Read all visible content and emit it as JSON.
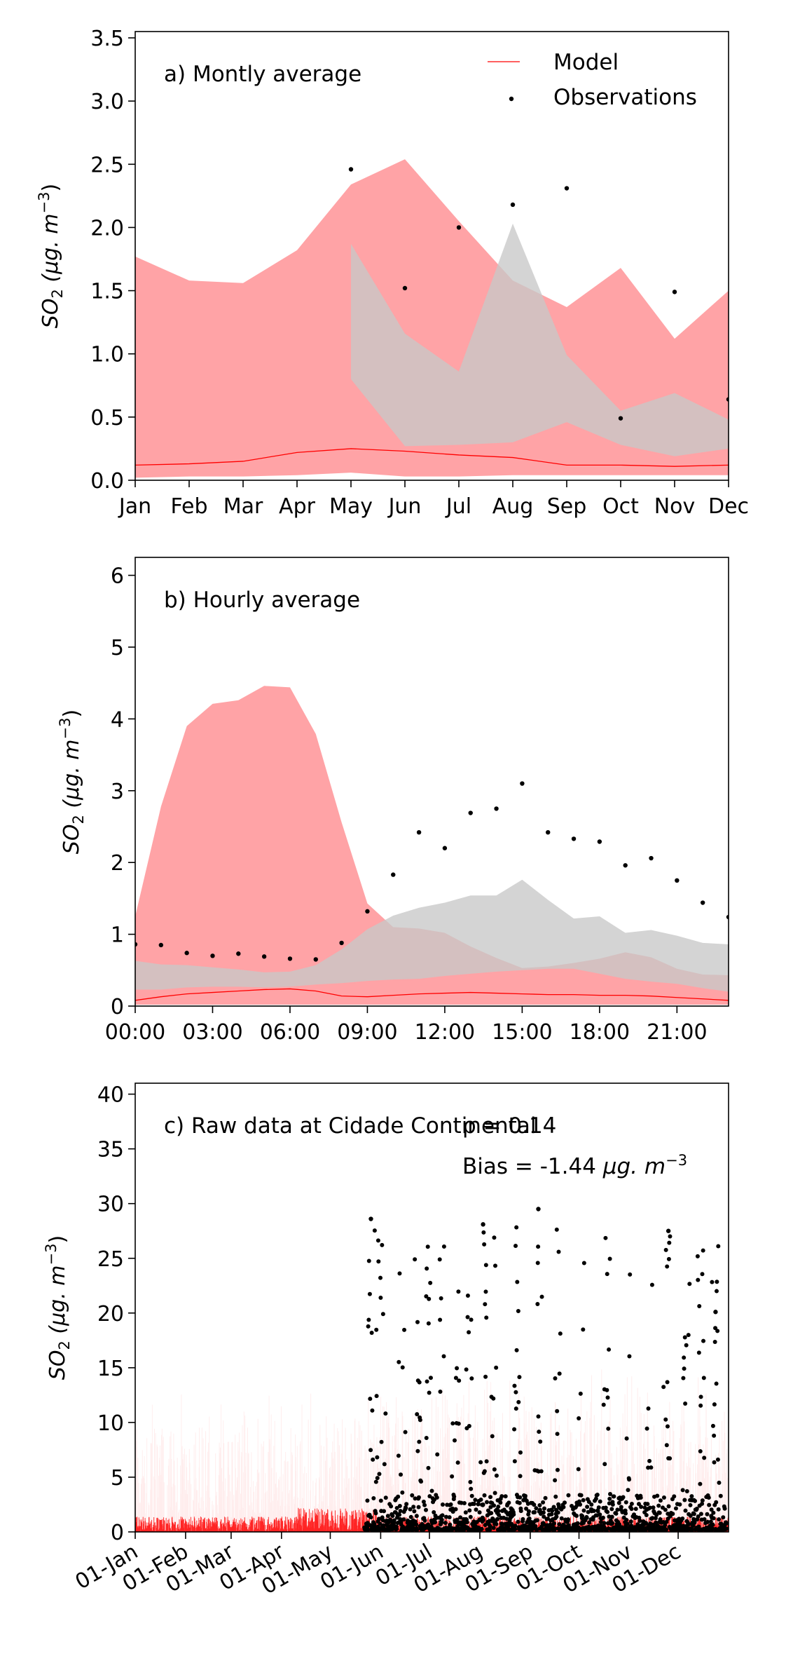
{
  "colors": {
    "model": "#ff0000",
    "model_band": "#ffa3a6",
    "obs_band": "#c8c8c8",
    "obs_point": "#000000",
    "axis": "#000000"
  },
  "legend": {
    "model_label": "Model",
    "obs_label": "Observations"
  },
  "chart_data": [
    {
      "type": "line",
      "title": "a) Montly average",
      "xlabel": "",
      "ylabel": "SO",
      "ylabel_sub": "2",
      "ylabel_unit": "(μg. m",
      "ylabel_exp": "−3",
      "ylim": [
        0,
        3.55
      ],
      "yticks": [
        0.0,
        0.5,
        1.0,
        1.5,
        2.0,
        2.5,
        3.0,
        3.5
      ],
      "ytick_labels": [
        "0.0",
        "0.5",
        "1.0",
        "1.5",
        "2.0",
        "2.5",
        "3.0",
        "3.5"
      ],
      "x": [
        1,
        2,
        3,
        4,
        5,
        6,
        7,
        8,
        9,
        10,
        11,
        12
      ],
      "xlim": [
        1,
        12
      ],
      "xtick_labels": [
        "Jan",
        "Feb",
        "Mar",
        "Apr",
        "May",
        "Jun",
        "Jul",
        "Aug",
        "Sep",
        "Oct",
        "Nov",
        "Dec"
      ],
      "legend_position": "top-right",
      "series": [
        {
          "name": "Model",
          "kind": "line",
          "values": [
            0.12,
            0.13,
            0.15,
            0.22,
            0.25,
            0.23,
            0.2,
            0.18,
            0.12,
            0.12,
            0.11,
            0.12
          ]
        },
        {
          "kind": "band",
          "color_key": "model_band",
          "x": [
            1,
            2,
            3,
            4,
            5,
            6,
            7,
            8,
            9,
            10,
            11,
            12
          ],
          "lower": [
            0.02,
            0.03,
            0.03,
            0.04,
            0.06,
            0.03,
            0.03,
            0.04,
            0.04,
            0.04,
            0.04,
            0.04
          ],
          "upper": [
            1.77,
            1.58,
            1.56,
            1.82,
            2.34,
            2.54,
            2.05,
            1.58,
            1.37,
            1.68,
            1.12,
            1.5
          ]
        },
        {
          "kind": "band",
          "color_key": "obs_band",
          "x": [
            5,
            6,
            7,
            8,
            9,
            10,
            11,
            12
          ],
          "lower": [
            0.8,
            0.27,
            0.28,
            0.3,
            0.46,
            0.28,
            0.19,
            0.25
          ],
          "upper": [
            1.87,
            1.16,
            0.86,
            2.03,
            0.99,
            0.55,
            0.69,
            0.48
          ]
        },
        {
          "name": "Observations",
          "kind": "points",
          "x": [
            5,
            6,
            7,
            8,
            9,
            10,
            11,
            12
          ],
          "values": [
            2.46,
            1.52,
            2.0,
            2.18,
            2.31,
            0.49,
            1.49,
            0.64
          ]
        }
      ]
    },
    {
      "type": "line",
      "title": "b) Hourly average",
      "xlabel": "",
      "ylabel": "SO",
      "ylabel_sub": "2",
      "ylabel_unit": "(μg. m",
      "ylabel_exp": "−3",
      "ylim": [
        0,
        6.25
      ],
      "yticks": [
        0,
        1,
        2,
        3,
        4,
        5,
        6
      ],
      "ytick_labels": [
        "0",
        "1",
        "2",
        "3",
        "4",
        "5",
        "6"
      ],
      "xlim": [
        0,
        23
      ],
      "xticks": [
        0,
        3,
        6,
        9,
        12,
        15,
        18,
        21
      ],
      "xtick_labels": [
        "00:00",
        "03:00",
        "06:00",
        "09:00",
        "12:00",
        "15:00",
        "18:00",
        "21:00"
      ],
      "x": [
        0,
        1,
        2,
        3,
        4,
        5,
        6,
        7,
        8,
        9,
        10,
        11,
        12,
        13,
        14,
        15,
        16,
        17,
        18,
        19,
        20,
        21,
        22,
        23
      ],
      "series": [
        {
          "name": "Model",
          "kind": "line",
          "values": [
            0.08,
            0.13,
            0.17,
            0.19,
            0.21,
            0.23,
            0.24,
            0.21,
            0.14,
            0.13,
            0.15,
            0.17,
            0.18,
            0.19,
            0.18,
            0.17,
            0.16,
            0.16,
            0.15,
            0.15,
            0.14,
            0.12,
            0.1,
            0.08
          ]
        },
        {
          "kind": "band",
          "color_key": "model_band",
          "lower": [
            0.02,
            0.02,
            0.02,
            0.02,
            0.02,
            0.02,
            0.02,
            0.02,
            0.02,
            0.02,
            0.02,
            0.02,
            0.02,
            0.02,
            0.02,
            0.02,
            0.02,
            0.02,
            0.02,
            0.02,
            0.02,
            0.02,
            0.02,
            0.02
          ],
          "upper": [
            1.25,
            2.78,
            3.9,
            4.21,
            4.26,
            4.46,
            4.44,
            3.79,
            2.56,
            1.43,
            1.1,
            1.08,
            1.02,
            0.83,
            0.67,
            0.53,
            0.55,
            0.6,
            0.66,
            0.75,
            0.68,
            0.52,
            0.44,
            0.43
          ]
        },
        {
          "kind": "band",
          "color_key": "obs_band",
          "lower": [
            0.23,
            0.23,
            0.26,
            0.27,
            0.27,
            0.26,
            0.27,
            0.3,
            0.32,
            0.35,
            0.37,
            0.38,
            0.42,
            0.45,
            0.48,
            0.5,
            0.52,
            0.52,
            0.45,
            0.38,
            0.34,
            0.31,
            0.25,
            0.2
          ],
          "upper": [
            0.63,
            0.58,
            0.57,
            0.54,
            0.51,
            0.47,
            0.48,
            0.57,
            0.79,
            1.07,
            1.26,
            1.37,
            1.44,
            1.54,
            1.54,
            1.76,
            1.48,
            1.22,
            1.25,
            1.02,
            1.06,
            0.98,
            0.88,
            0.86
          ]
        },
        {
          "name": "Observations",
          "kind": "points",
          "values": [
            0.86,
            0.85,
            0.74,
            0.7,
            0.73,
            0.69,
            0.66,
            0.65,
            0.88,
            1.32,
            1.83,
            2.42,
            2.2,
            2.69,
            2.75,
            3.1,
            2.42,
            2.33,
            2.29,
            1.96,
            2.06,
            1.75,
            1.44,
            1.24
          ]
        }
      ]
    },
    {
      "type": "scatter",
      "title": "c) Raw data at Cidade Continental",
      "annotation_rho": "ρ = 0.14",
      "annotation_bias_prefix": "Bias = -1.44 ",
      "annotation_bias_unit": "μg. m",
      "annotation_bias_exp": "−3",
      "xlabel": "",
      "ylabel": "SO",
      "ylabel_sub": "2",
      "ylabel_unit": "(μg. m",
      "ylabel_exp": "−3",
      "ylim": [
        0,
        41
      ],
      "yticks": [
        0,
        5,
        10,
        15,
        20,
        25,
        30,
        35,
        40
      ],
      "ytick_labels": [
        "0",
        "5",
        "10",
        "15",
        "20",
        "25",
        "30",
        "35",
        "40"
      ],
      "xlim": [
        "01-Jan",
        "31-Dec"
      ],
      "xtick_labels": [
        "01-Jan",
        "01-Feb",
        "01-Mar",
        "01-Apr",
        "01-May",
        "01-Jun",
        "01-Jul",
        "01-Aug",
        "01-Sep",
        "01-Oct",
        "01-Nov",
        "01-Dec"
      ],
      "observation_period": [
        "22-May",
        "31-Dec"
      ],
      "notable_observation_peaks": [
        {
          "date": "26-May",
          "value": 28.6
        },
        {
          "date": "03-Aug",
          "value": 28.1
        },
        {
          "date": "06-Sep",
          "value": 29.5
        },
        {
          "date": "25-Nov",
          "value": 27.5
        },
        {
          "date": "24-Dec",
          "value": 20.1
        }
      ],
      "model_peak_range": [
        0,
        15.5
      ]
    }
  ]
}
